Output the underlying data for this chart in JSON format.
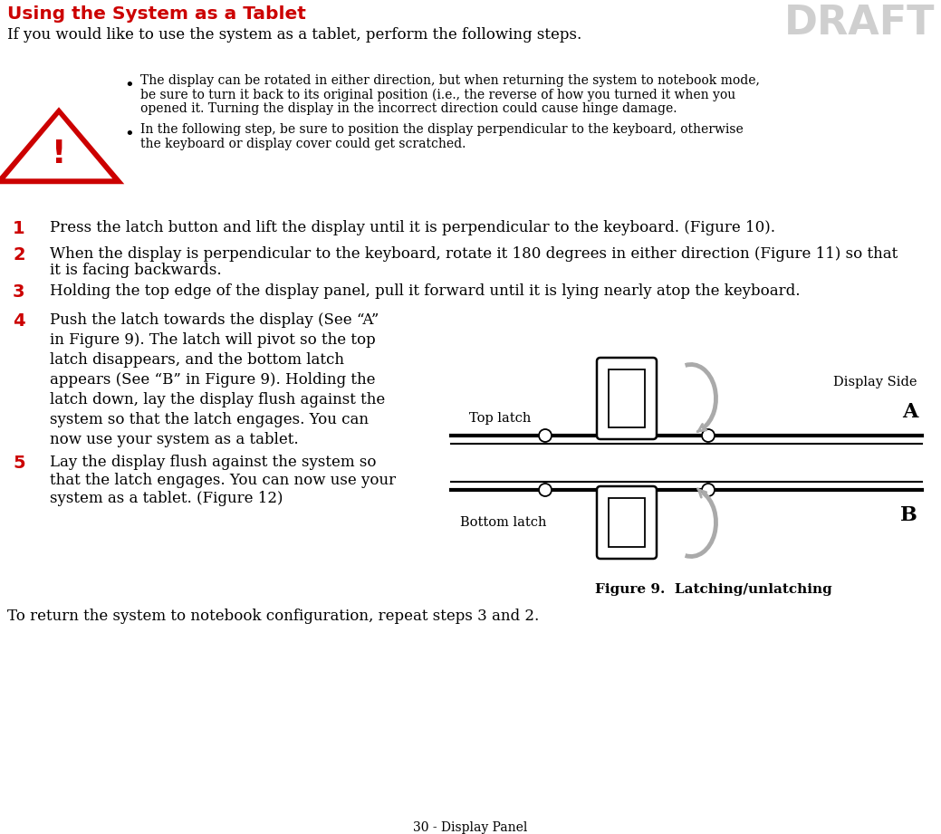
{
  "title": "Using the System as a Tablet",
  "title_color": "#CC0000",
  "draft_text": "DRAFT",
  "draft_color": "#BBBBBB",
  "intro_text": "If you would like to use the system as a tablet, perform the following steps.",
  "warning_lines1": [
    "The display can be rotated in either direction, but when returning the system to notebook mode,",
    "be sure to turn it back to its original position (i.e., the reverse of how you turned it when you",
    "opened it. Turning the display in the incorrect direction could cause hinge damage."
  ],
  "warning_lines2": [
    "In the following step, be sure to position the display perpendicular to the keyboard, otherwise",
    "the keyboard or display cover could get scratched."
  ],
  "step1": "Press the latch button and lift the display until it is perpendicular to the keyboard. (Figure 10).",
  "step2_lines": [
    "When the display is perpendicular to the keyboard, rotate it 180 degrees in either direction (Figure 11) so that",
    "it is facing backwards."
  ],
  "step3": "Holding the top edge of the display panel, pull it forward until it is lying nearly atop the keyboard.",
  "step4_lines": [
    "Push the latch towards the display (See “A”",
    "in Figure 9). The latch will pivot so the top",
    "latch disappears, and the bottom latch",
    "appears (See “B” in Figure 9). Holding the",
    "latch down, lay the display flush against the",
    "system so that the latch engages. You can",
    "now use your system as a tablet."
  ],
  "step5_lines": [
    "Lay the display flush against the system so",
    "that the latch engages. You can now use your",
    "system as a tablet. (Figure 12)"
  ],
  "return_text": "To return the system to notebook configuration, repeat steps 3 and 2.",
  "figure_caption": "Figure 9.  Latching/unlatching",
  "label_top_latch": "Top latch",
  "label_bottom_latch": "Bottom latch",
  "label_display_side": "Display Side",
  "label_A": "A",
  "label_B": "B",
  "footer_text": "30 - Display Panel",
  "bg": "#FFFFFF",
  "black": "#000000",
  "red": "#CC0000",
  "gray": "#AAAAAA"
}
